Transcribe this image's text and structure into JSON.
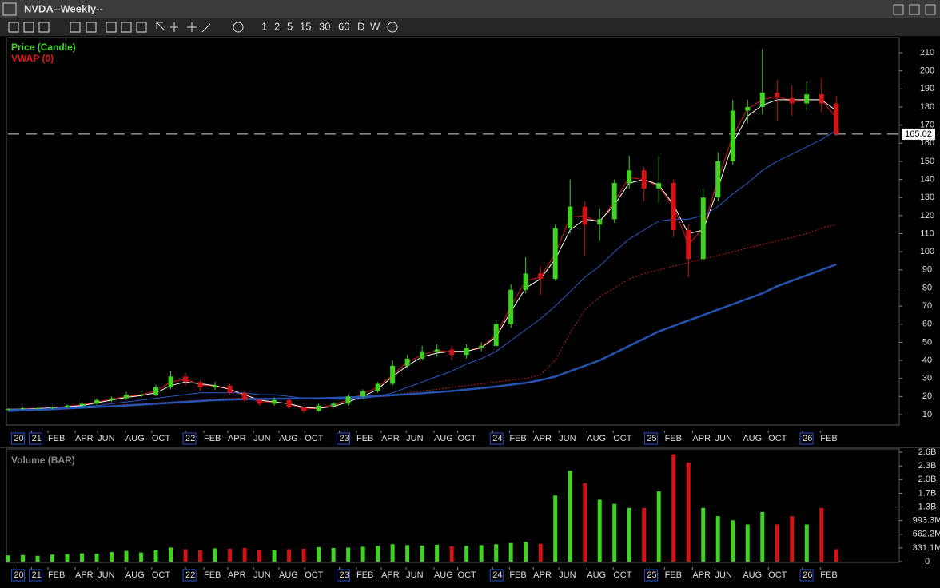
{
  "window": {
    "title": "NVDA--Weekly--"
  },
  "toolbar": {
    "periods": [
      "1",
      "2",
      "5",
      "15",
      "30",
      "60",
      "D",
      "W"
    ]
  },
  "chart_data": [
    {
      "type": "candlestick",
      "x": [
        0,
        5,
        10,
        15,
        20,
        25,
        30,
        35,
        40,
        45,
        50,
        55,
        60,
        65,
        70,
        75,
        80,
        85,
        90,
        95,
        100,
        105,
        110,
        115,
        120,
        125,
        130,
        135,
        140,
        145,
        150,
        155,
        160,
        165,
        170,
        175,
        180,
        185,
        190,
        195,
        200,
        205,
        210,
        215,
        220,
        225,
        230,
        235,
        240,
        245,
        250,
        255,
        260,
        265,
        270,
        275,
        280
      ],
      "xlim": [
        0,
        301
      ],
      "xticks": [
        {
          "value": 2,
          "label": "20"
        },
        {
          "value": 8,
          "label": "21"
        },
        {
          "value": 13.5,
          "label": "FEB"
        },
        {
          "value": 22.7,
          "label": "APR"
        },
        {
          "value": 30.3,
          "label": "JUN"
        },
        {
          "value": 39.7,
          "label": "AUG"
        },
        {
          "value": 48.6,
          "label": "OCT"
        },
        {
          "value": 60,
          "label": "22"
        },
        {
          "value": 66.2,
          "label": "FEB"
        },
        {
          "value": 74.3,
          "label": "APR"
        },
        {
          "value": 83,
          "label": "JUN"
        },
        {
          "value": 91.6,
          "label": "AUG"
        },
        {
          "value": 100.3,
          "label": "OCT"
        },
        {
          "value": 112,
          "label": "23"
        },
        {
          "value": 117.8,
          "label": "FEB"
        },
        {
          "value": 126.2,
          "label": "APR"
        },
        {
          "value": 134.6,
          "label": "JUN"
        },
        {
          "value": 144,
          "label": "AUG"
        },
        {
          "value": 152,
          "label": "OCT"
        },
        {
          "value": 163.8,
          "label": "24"
        },
        {
          "value": 169.5,
          "label": "FEB"
        },
        {
          "value": 177.6,
          "label": "APR"
        },
        {
          "value": 186.2,
          "label": "JUN"
        },
        {
          "value": 195.7,
          "label": "AUG"
        },
        {
          "value": 204.6,
          "label": "OCT"
        },
        {
          "value": 216,
          "label": "25"
        },
        {
          "value": 222,
          "label": "FEB"
        },
        {
          "value": 231.4,
          "label": "APR"
        },
        {
          "value": 239,
          "label": "JUN"
        },
        {
          "value": 248.4,
          "label": "AUG"
        },
        {
          "value": 257,
          "label": "OCT"
        },
        {
          "value": 268.6,
          "label": "26"
        },
        {
          "value": 274.6,
          "label": "FEB"
        }
      ],
      "ylim": [
        5,
        220
      ],
      "yticks": [
        10,
        20,
        30,
        40,
        50,
        60,
        70,
        80,
        90,
        100,
        110,
        120,
        130,
        140,
        150,
        160,
        170,
        180,
        190,
        200,
        210
      ],
      "last_price": 165.02,
      "up_color": "#3fd41f",
      "down_color": "#d41414",
      "series": [
        {
          "name": "Price (Candle)",
          "color": "#3fd41f",
          "open": [
            12.8,
            13,
            13.5,
            13.5,
            14,
            15,
            16,
            18,
            19,
            21,
            21,
            25,
            31,
            28,
            25,
            26,
            22,
            18,
            16,
            18,
            14,
            12,
            15,
            16,
            20,
            23,
            27,
            37,
            41,
            45,
            46,
            43,
            47,
            48,
            60,
            79,
            88,
            85,
            113,
            125,
            115,
            118,
            138,
            145,
            135,
            138,
            112,
            96,
            130,
            150,
            178,
            180,
            188,
            185,
            182,
            187,
            182
          ],
          "high": [
            13.5,
            14,
            14.2,
            14.6,
            15.6,
            17,
            19,
            20,
            22.5,
            23,
            26.5,
            34,
            33,
            29,
            28,
            27,
            23,
            19,
            19.5,
            19,
            14.5,
            16,
            17,
            21,
            24,
            28,
            40,
            43,
            48,
            49,
            48,
            49,
            50,
            62,
            82,
            97,
            92,
            115,
            140,
            128,
            124,
            140,
            153,
            147,
            153,
            140,
            115,
            135,
            155,
            184,
            184,
            212,
            195,
            192,
            194,
            196,
            186
          ],
          "low": [
            12.3,
            12.6,
            12.8,
            13,
            13.5,
            14.5,
            15.5,
            17,
            18,
            19.5,
            20,
            24,
            26,
            23,
            23.5,
            21,
            17,
            15,
            15,
            13,
            11,
            11.5,
            14,
            15,
            19,
            22,
            26,
            36,
            40,
            42,
            40,
            41,
            45,
            47,
            58,
            77,
            76,
            84,
            110,
            98,
            106,
            116,
            135,
            128,
            127,
            108,
            86,
            95,
            128,
            148,
            171,
            176,
            172,
            175,
            178,
            177,
            164
          ],
          "close": [
            13,
            13.5,
            13.5,
            14,
            15,
            16,
            18,
            19,
            21,
            21,
            25,
            31,
            28,
            25,
            26,
            22,
            18,
            16,
            18,
            14,
            12,
            15,
            16,
            20,
            23,
            27,
            37,
            41,
            45,
            46,
            43,
            47,
            48,
            60,
            79,
            88,
            85,
            113,
            125,
            115,
            118,
            138,
            145,
            135,
            138,
            112,
            96,
            130,
            150,
            178,
            180,
            188,
            185,
            182,
            187,
            182,
            165.02
          ]
        },
        {
          "name": "VWAP (0)",
          "color": "#e01818",
          "width": 1,
          "values": [
            13,
            13.2,
            13.5,
            13.8,
            14.5,
            15.5,
            17,
            18.5,
            20,
            21,
            23,
            28,
            29.5,
            26.5,
            25.5,
            24,
            20,
            17,
            17,
            16,
            13,
            13.5,
            15.5,
            18,
            21.5,
            25,
            32,
            39,
            43,
            45.5,
            44.5,
            45,
            47.5,
            54,
            70,
            84,
            86,
            99,
            119,
            120,
            116,
            128,
            141,
            140,
            136,
            125,
            104,
            113,
            140,
            164,
            179,
            184,
            186,
            183,
            184,
            184,
            174
          ]
        },
        {
          "color": "#ffffff",
          "width": 1,
          "values": [
            13,
            13,
            13.3,
            13.7,
            14.3,
            15,
            16.5,
            18,
            19.5,
            20.5,
            22,
            26,
            28,
            27,
            26,
            24,
            21,
            18,
            17,
            16,
            14,
            13.5,
            14.5,
            17,
            20,
            24,
            31,
            37,
            42,
            44,
            45,
            45,
            47,
            53,
            67,
            80,
            85,
            96,
            112,
            118,
            117,
            126,
            138,
            140,
            137,
            126,
            110,
            112,
            135,
            160,
            175,
            181,
            184,
            184,
            184,
            184,
            178
          ]
        },
        {
          "color": "#2a5cc8",
          "width": 1,
          "values": [
            13,
            13,
            13,
            13.5,
            14,
            14.5,
            15,
            16,
            17,
            18,
            19,
            20,
            21,
            22,
            22,
            22,
            22,
            21,
            21,
            20,
            19,
            19,
            18.5,
            18.5,
            19,
            20,
            22,
            25,
            28,
            31,
            34,
            38,
            41,
            45,
            51,
            57,
            63,
            70,
            78,
            86,
            92,
            100,
            107,
            112,
            117,
            118,
            118,
            120,
            125,
            132,
            138,
            145,
            150,
            154,
            158,
            162,
            167
          ]
        },
        {
          "color": "#c41a1a",
          "width": 1,
          "dash": "2 2",
          "values": [
            12,
            12.5,
            13,
            13.3,
            13.6,
            14,
            14.5,
            15,
            15.5,
            16,
            16.5,
            17,
            17.5,
            18,
            18.5,
            19,
            19,
            19,
            19,
            19,
            19,
            19,
            19,
            19,
            19.5,
            20,
            21,
            22,
            23,
            24,
            25,
            26,
            27,
            28,
            29,
            30,
            32,
            40,
            55,
            68,
            75,
            80,
            85,
            88,
            90,
            92,
            94,
            96,
            98,
            100,
            102,
            104,
            106,
            108,
            110,
            113,
            115
          ]
        },
        {
          "color": "#2553b0",
          "width": 2.5,
          "values": [
            12,
            12.3,
            12.6,
            13,
            13.4,
            13.8,
            14.2,
            14.6,
            15,
            15.5,
            16,
            16.5,
            17,
            17.5,
            18,
            18.3,
            18.5,
            18.6,
            18.7,
            18.8,
            18.9,
            19,
            19.2,
            19.5,
            19.8,
            20.2,
            20.7,
            21.2,
            21.8,
            22.4,
            23,
            23.8,
            24.6,
            25.5,
            26.5,
            27.5,
            29,
            31,
            34,
            37,
            40,
            44,
            48,
            52,
            56,
            59,
            62,
            65,
            68,
            71,
            74,
            77,
            81,
            84,
            87,
            90,
            93
          ]
        }
      ]
    },
    {
      "type": "bar",
      "x": [
        0,
        5,
        10,
        15,
        20,
        25,
        30,
        35,
        40,
        45,
        50,
        55,
        60,
        65,
        70,
        75,
        80,
        85,
        90,
        95,
        100,
        105,
        110,
        115,
        120,
        125,
        130,
        135,
        140,
        145,
        150,
        155,
        160,
        165,
        170,
        175,
        180,
        185,
        190,
        195,
        200,
        205,
        210,
        215,
        220,
        225,
        230,
        235,
        240,
        245,
        250,
        255,
        260,
        265,
        270,
        275,
        280
      ],
      "xlim": [
        0,
        301
      ],
      "xticks": [
        {
          "value": 2,
          "label": "20"
        },
        {
          "value": 8,
          "label": "21"
        },
        {
          "value": 13.5,
          "label": "FEB"
        },
        {
          "value": 22.7,
          "label": "APR"
        },
        {
          "value": 30.3,
          "label": "JUN"
        },
        {
          "value": 39.7,
          "label": "AUG"
        },
        {
          "value": 48.6,
          "label": "OCT"
        },
        {
          "value": 60,
          "label": "22"
        },
        {
          "value": 66.2,
          "label": "FEB"
        },
        {
          "value": 74.3,
          "label": "APR"
        },
        {
          "value": 83,
          "label": "JUN"
        },
        {
          "value": 91.6,
          "label": "AUG"
        },
        {
          "value": 100.3,
          "label": "OCT"
        },
        {
          "value": 112,
          "label": "23"
        },
        {
          "value": 117.8,
          "label": "FEB"
        },
        {
          "value": 126.2,
          "label": "APR"
        },
        {
          "value": 134.6,
          "label": "JUN"
        },
        {
          "value": 144,
          "label": "AUG"
        },
        {
          "value": 152,
          "label": "OCT"
        },
        {
          "value": 163.8,
          "label": "24"
        },
        {
          "value": 169.5,
          "label": "FEB"
        },
        {
          "value": 177.6,
          "label": "APR"
        },
        {
          "value": 186.2,
          "label": "JUN"
        },
        {
          "value": 195.7,
          "label": "AUG"
        },
        {
          "value": 204.6,
          "label": "OCT"
        },
        {
          "value": 216,
          "label": "25"
        },
        {
          "value": 222,
          "label": "FEB"
        },
        {
          "value": 231.4,
          "label": "APR"
        },
        {
          "value": 239,
          "label": "JUN"
        },
        {
          "value": 248.4,
          "label": "AUG"
        },
        {
          "value": 257,
          "label": "OCT"
        },
        {
          "value": 268.6,
          "label": "26"
        },
        {
          "value": 274.6,
          "label": "FEB"
        }
      ],
      "ylim": [
        0,
        2648800000
      ],
      "yticks": [
        0,
        {
          "value": 331100000,
          "label": "331.1M"
        },
        {
          "value": 662200000,
          "label": "662.2M"
        },
        {
          "value": 993300000,
          "label": "993.3M"
        },
        {
          "value": 1324400000,
          "label": "1.3B"
        },
        {
          "value": 1655500000,
          "label": "1.7B"
        },
        {
          "value": 1986600000,
          "label": "2.0B"
        },
        {
          "value": 2317700000,
          "label": "2.3B"
        },
        {
          "value": 2648800000,
          "label": "2.6B"
        }
      ],
      "series": [
        {
          "name": "Volume (BAR)",
          "values": [
            150000000,
            160000000,
            140000000,
            170000000,
            180000000,
            200000000,
            190000000,
            230000000,
            260000000,
            220000000,
            280000000,
            340000000,
            300000000,
            280000000,
            320000000,
            310000000,
            330000000,
            290000000,
            280000000,
            300000000,
            310000000,
            350000000,
            330000000,
            340000000,
            360000000,
            380000000,
            420000000,
            400000000,
            390000000,
            410000000,
            370000000,
            380000000,
            400000000,
            420000000,
            450000000,
            480000000,
            430000000,
            1600000000,
            2200000000,
            1900000000,
            1500000000,
            1400000000,
            1300000000,
            1300000000,
            1700000000,
            2600000000,
            2400000000,
            1300000000,
            1100000000,
            1000000000,
            900000000,
            1200000000,
            900000000,
            1100000000,
            900000000,
            1300000000,
            300000000
          ]
        }
      ]
    }
  ]
}
